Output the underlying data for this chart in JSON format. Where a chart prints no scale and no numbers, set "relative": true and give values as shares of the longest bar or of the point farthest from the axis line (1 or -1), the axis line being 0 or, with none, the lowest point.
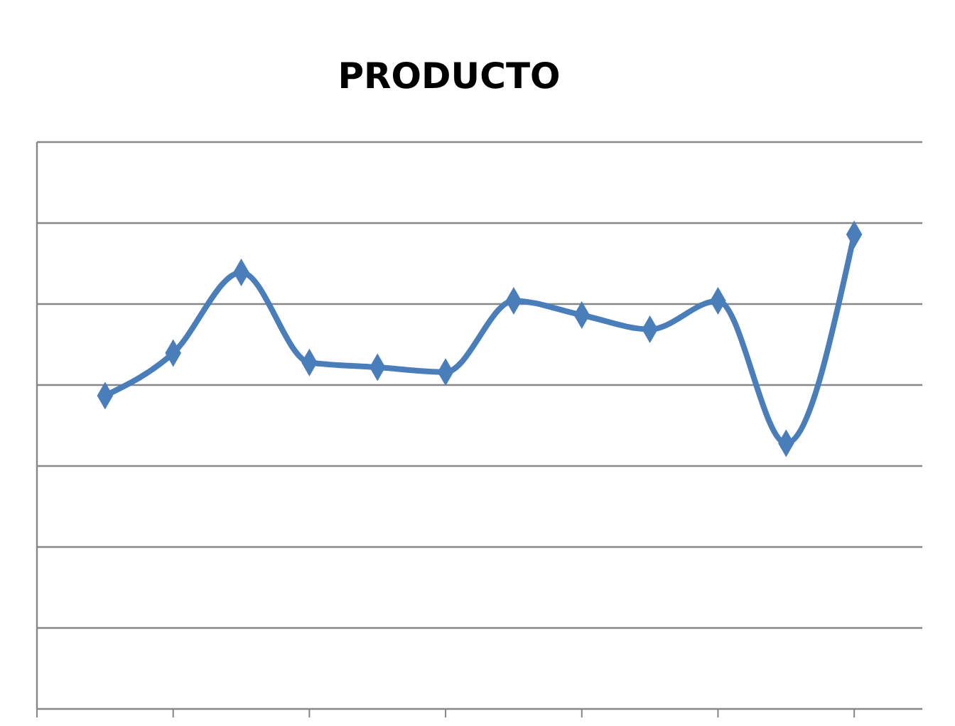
{
  "chart_data": {
    "type": "line",
    "title": "PRODUCTO",
    "relative": true,
    "categories": [
      null,
      null,
      null,
      null,
      null,
      null,
      null,
      null,
      null,
      null,
      null,
      null
    ],
    "series": [
      {
        "color": "#4a7ebb",
        "values": [
          0.66,
          0.75,
          0.92,
          0.73,
          0.72,
          0.71,
          0.86,
          0.83,
          0.8,
          0.86,
          0.56,
          1
        ]
      }
    ],
    "marker": "diamond",
    "line_style": "solid",
    "grid": true
  }
}
